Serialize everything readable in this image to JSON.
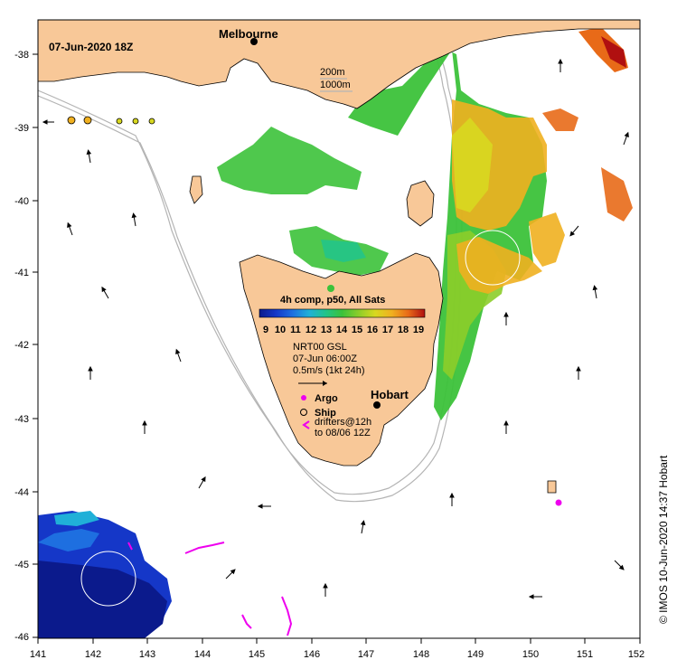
{
  "map": {
    "date_label": "07-Jun-2020 18Z",
    "credit": "© IMOS 10-Jun-2020 14:37 Hobart",
    "lon_ticks": [
      "141",
      "142",
      "143",
      "144",
      "145",
      "146",
      "147",
      "148",
      "149",
      "150",
      "151",
      "152"
    ],
    "lat_ticks": [
      "-38",
      "-39",
      "-40",
      "-41",
      "-42",
      "-43",
      "-44",
      "-45",
      "-46"
    ]
  },
  "places": {
    "melbourne": "Melbourne",
    "hobart": "Hobart"
  },
  "contours": {
    "c200": "200m",
    "c1000": "1000m"
  },
  "sst": {
    "title": "4h comp, p50, All Sats",
    "scale": [
      "9",
      "10",
      "11",
      "12",
      "13",
      "14",
      "15",
      "16",
      "17",
      "18",
      "19"
    ],
    "colors": [
      "#0b1a8c",
      "#1537c8",
      "#1e6fe0",
      "#20b0d8",
      "#22c48a",
      "#3cc23a",
      "#8ccd2a",
      "#d8d820",
      "#f0b020",
      "#e86a18",
      "#b01010"
    ]
  },
  "currents": {
    "source": "NRT00 GSL",
    "time": "07-Jun 06:00Z",
    "scale": "0.5m/s (1kt 24h)"
  },
  "legend": {
    "argo": "Argo",
    "ship": "Ship",
    "drifters_line1": "drifters@12h",
    "drifters_line2": "to 08/06 12Z"
  },
  "colors": {
    "land": "#f8c898",
    "argo": "#ee00ee",
    "shelf": "#b4b4b4"
  }
}
